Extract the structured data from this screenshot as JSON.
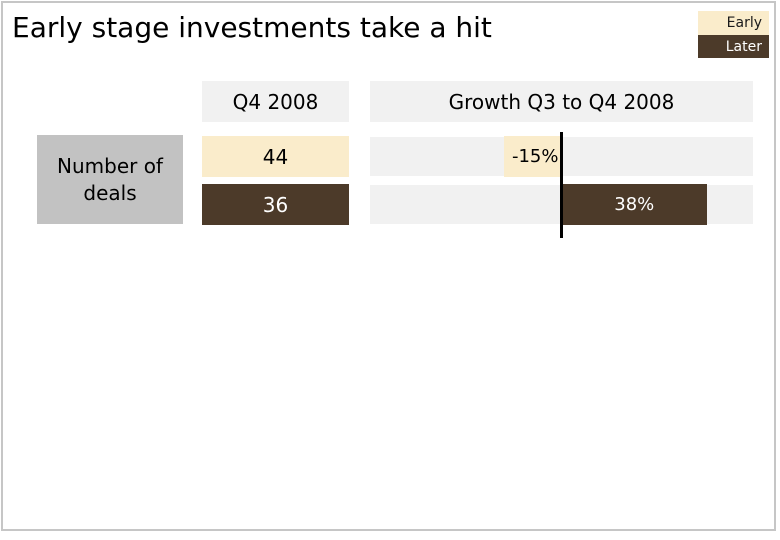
{
  "title": "Early stage investments take a hit",
  "legend": {
    "early": "Early",
    "later": "Later"
  },
  "row_label": "Number of deals",
  "columns": {
    "q4": {
      "header": "Q4 2008",
      "early_value": "44",
      "later_value": "36"
    },
    "growth": {
      "header": "Growth Q3 to Q4 2008",
      "early_label": "-15%",
      "later_label": "38%"
    }
  },
  "colors": {
    "early": "#faeccb",
    "later": "#4c3a29",
    "track": "#f1f1f1",
    "header_bg": "#f1f1f1",
    "row_label_bg": "#c2c2c2",
    "axis": "#000000",
    "frame_border": "#c6c6c6"
  },
  "chart_data": {
    "type": "bar",
    "title": "Early stage investments take a hit",
    "categories": [
      "Number of deals"
    ],
    "columns": [
      "Q4 2008",
      "Growth Q3 to Q4 2008"
    ],
    "series": [
      {
        "name": "Early",
        "q4_2008_value": 44,
        "growth_pct": -15
      },
      {
        "name": "Later",
        "q4_2008_value": 36,
        "growth_pct": 38
      }
    ],
    "growth_axis": {
      "orientation": "horizontal",
      "range_pct": [
        -50,
        50
      ],
      "zero_line": true,
      "grid": false
    },
    "legend_position": "top-right",
    "legend_entries": [
      "Early",
      "Later"
    ]
  }
}
